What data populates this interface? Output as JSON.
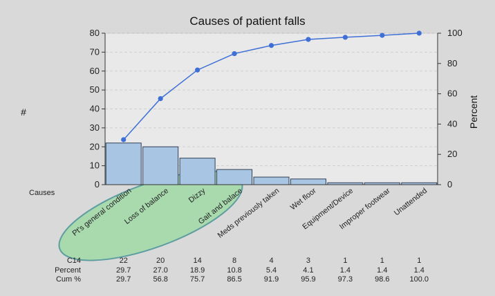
{
  "chart_data": {
    "type": "bar",
    "title": "Causes of patient falls",
    "xlabel": "Causes",
    "ylabel": "#",
    "y2label": "Percent",
    "ylim": [
      0,
      80
    ],
    "y2lim": [
      0,
      100
    ],
    "yticks": [
      0,
      10,
      20,
      30,
      40,
      50,
      60,
      70,
      80
    ],
    "y2ticks": [
      0,
      20,
      40,
      60,
      80,
      100
    ],
    "categories": [
      "Pt's general condition",
      "Loss of balance",
      "Dizzy",
      "Gait and balace",
      "Meds previously taken",
      "Wet floor",
      "Equipment/Device",
      "Improper footwear",
      "Unattended"
    ],
    "series": [
      {
        "name": "C14",
        "values": [
          22,
          20,
          14,
          8,
          4,
          3,
          1,
          1,
          1
        ]
      },
      {
        "name": "Percent",
        "values": [
          29.7,
          27.0,
          18.9,
          10.8,
          5.4,
          4.1,
          1.4,
          1.4,
          1.4
        ]
      },
      {
        "name": "Cum %",
        "values": [
          29.7,
          56.8,
          75.7,
          86.5,
          91.9,
          95.9,
          97.3,
          98.6,
          100.0
        ]
      }
    ],
    "table_text": {
      "C14": [
        "22",
        "20",
        "14",
        "8",
        "4",
        "3",
        "1",
        "1",
        "1"
      ],
      "Percent": [
        "29.7",
        "27.0",
        "18.9",
        "10.8",
        "5.4",
        "4.1",
        "1.4",
        "1.4",
        "1.4"
      ],
      "Cum %": [
        "29.7",
        "56.8",
        "75.7",
        "86.5",
        "91.9",
        "95.9",
        "97.3",
        "98.6",
        "100.0"
      ]
    },
    "grid": true,
    "highlight": {
      "description": "green ellipse around first four causes",
      "categories": [
        0,
        1,
        2,
        3
      ]
    },
    "colors": {
      "bar": "#a9c5e4",
      "bar_edge": "#2f3f55",
      "line": "#3d6fd6",
      "highlight_fill": "#9fd9a6",
      "highlight_edge": "#5e9da0",
      "plot_bg": "#e9e9e9",
      "bg": "#d9d9d9"
    }
  }
}
